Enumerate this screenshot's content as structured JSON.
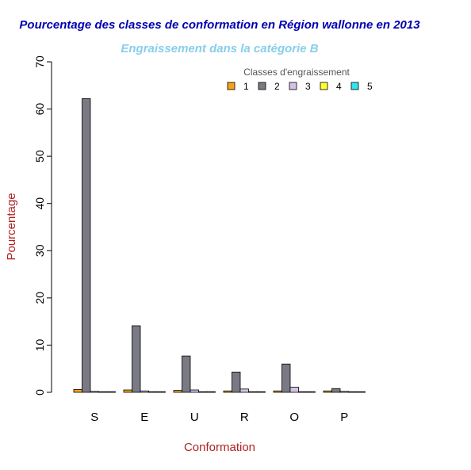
{
  "chart_data": {
    "type": "bar",
    "title": "Pourcentage des classes de conformation en Région wallonne en 2013",
    "subtitle": "Engraissement dans la catégorie B",
    "xlabel": "Conformation",
    "ylabel": "Pourcentage",
    "categories": [
      "S",
      "E",
      "U",
      "R",
      "O",
      "P"
    ],
    "ylim": [
      0,
      70
    ],
    "yticks": [
      "0",
      "10",
      "20",
      "30",
      "40",
      "50",
      "60",
      "70"
    ],
    "legend": {
      "title": "Classes d'engraissement",
      "placement": "top-right"
    },
    "series": [
      {
        "name": "1",
        "color": "#F5A31A",
        "values": [
          0.6,
          0.5,
          0.4,
          0.3,
          0.3,
          0.3
        ]
      },
      {
        "name": "2",
        "color": "#7A7A84",
        "values": [
          62.2,
          14.1,
          7.7,
          4.3,
          6.0,
          0.8
        ]
      },
      {
        "name": "3",
        "color": "#D4C2E6",
        "values": [
          0.2,
          0.3,
          0.5,
          0.7,
          1.1,
          0.2
        ]
      },
      {
        "name": "4",
        "color": "#FFFF33",
        "values": [
          0.0,
          0.0,
          0.0,
          0.1,
          0.0,
          0.0
        ]
      },
      {
        "name": "5",
        "color": "#33E6EE",
        "values": [
          0.0,
          0.0,
          0.0,
          0.0,
          0.0,
          0.0
        ]
      }
    ],
    "colors": {
      "title": "#0000B3",
      "subtitle": "#87CEEB",
      "axis_label": "#B22222",
      "axis": "#000000"
    }
  }
}
